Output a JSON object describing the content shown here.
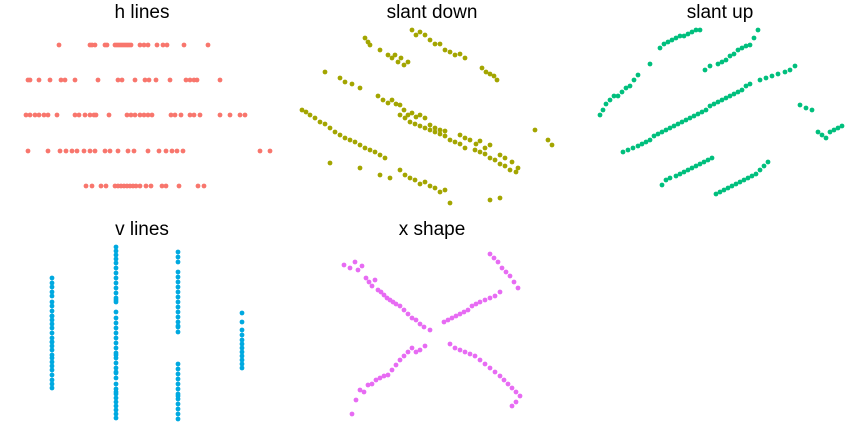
{
  "chart_data": [
    {
      "type": "scatter",
      "title": "h lines",
      "color": "#F8766D",
      "x": [
        59,
        90,
        92,
        95,
        105,
        107,
        115,
        117,
        119,
        121,
        123,
        125,
        127,
        129,
        131,
        140,
        144,
        148,
        157,
        163,
        167,
        184,
        208,
        28,
        30,
        39,
        50,
        61,
        65,
        75,
        98,
        118,
        122,
        135,
        145,
        149,
        156,
        170,
        186,
        190,
        194,
        197,
        220,
        26,
        30,
        35,
        39,
        44,
        48,
        57,
        75,
        79,
        85,
        90,
        94,
        96,
        109,
        127,
        131,
        135,
        140,
        144,
        148,
        152,
        171,
        175,
        181,
        190,
        194,
        200,
        220,
        230,
        240,
        245,
        28,
        48,
        60,
        66,
        72,
        77,
        84,
        90,
        95,
        105,
        110,
        118,
        128,
        134,
        148,
        159,
        166,
        172,
        177,
        183,
        260,
        270,
        86,
        92,
        101,
        106,
        115,
        118,
        121,
        124,
        127,
        130,
        133,
        136,
        140,
        146,
        151,
        162,
        166,
        179,
        198,
        204
      ],
      "y": [
        45,
        45,
        45,
        45,
        45,
        45,
        45,
        45,
        45,
        45,
        45,
        45,
        45,
        45,
        45,
        45,
        45,
        45,
        45,
        45,
        45,
        45,
        45,
        80,
        80,
        80,
        80,
        80,
        80,
        80,
        80,
        80,
        80,
        80,
        80,
        80,
        80,
        80,
        80,
        80,
        80,
        80,
        80,
        115,
        115,
        115,
        115,
        115,
        115,
        115,
        115,
        115,
        115,
        115,
        115,
        115,
        115,
        115,
        115,
        115,
        115,
        115,
        115,
        115,
        115,
        115,
        115,
        115,
        115,
        115,
        115,
        115,
        115,
        115,
        151,
        151,
        151,
        151,
        151,
        151,
        151,
        151,
        151,
        151,
        151,
        151,
        151,
        151,
        151,
        151,
        151,
        151,
        151,
        151,
        151,
        151,
        186,
        186,
        186,
        186,
        186,
        186,
        186,
        186,
        186,
        186,
        186,
        186,
        186,
        186,
        186,
        186,
        186,
        186,
        186,
        186
      ]
    },
    {
      "type": "scatter",
      "title": "slant down",
      "color": "#A3A500",
      "x": [
        365,
        368,
        370,
        380,
        388,
        392,
        395,
        398,
        401,
        404,
        408,
        412,
        416,
        420,
        425,
        430,
        435,
        440,
        445,
        450,
        455,
        460,
        465,
        482,
        486,
        490,
        494,
        497,
        325,
        340,
        345,
        352,
        360,
        378,
        383,
        388,
        392,
        396,
        400,
        404,
        408,
        412,
        416,
        420,
        425,
        430,
        435,
        440,
        445,
        460,
        465,
        470,
        476,
        480,
        485,
        490,
        500,
        505,
        512,
        518,
        302,
        306,
        310,
        315,
        320,
        325,
        330,
        335,
        340,
        345,
        350,
        355,
        360,
        365,
        370,
        375,
        380,
        385,
        400,
        405,
        410,
        415,
        420,
        425,
        430,
        435,
        440,
        445,
        450,
        455,
        460,
        465,
        475,
        480,
        485,
        490,
        495,
        500,
        505,
        510,
        516,
        535,
        548,
        552,
        330,
        360,
        380,
        390,
        400,
        405,
        410,
        415,
        420,
        425,
        430,
        435,
        440,
        445,
        450,
        490,
        500
      ],
      "y": [
        38,
        42,
        45,
        50,
        55,
        58,
        55,
        62,
        58,
        65,
        62,
        30,
        35,
        32,
        35,
        40,
        44,
        44,
        50,
        52,
        55,
        54,
        58,
        68,
        72,
        74,
        76,
        80,
        72,
        78,
        82,
        84,
        88,
        96,
        100,
        103,
        100,
        104,
        105,
        110,
        115,
        113,
        117,
        115,
        118,
        125,
        128,
        130,
        131,
        135,
        138,
        140,
        144,
        141,
        148,
        145,
        155,
        158,
        162,
        168,
        110,
        112,
        115,
        118,
        122,
        124,
        128,
        132,
        135,
        138,
        140,
        142,
        145,
        148,
        150,
        152,
        155,
        158,
        115,
        118,
        122,
        124,
        126,
        128,
        130,
        132,
        134,
        136,
        140,
        142,
        144,
        148,
        150,
        152,
        154,
        158,
        160,
        164,
        166,
        170,
        172,
        130,
        140,
        145,
        163,
        168,
        175,
        178,
        170,
        175,
        178,
        180,
        184,
        182,
        186,
        188,
        192,
        190,
        203,
        200,
        198
      ]
    },
    {
      "type": "scatter",
      "title": "slant up",
      "color": "#00BF7D",
      "x": [
        600,
        603,
        606,
        610,
        614,
        618,
        622,
        626,
        630,
        634,
        638,
        650,
        660,
        664,
        668,
        672,
        676,
        680,
        684,
        688,
        692,
        696,
        700,
        705,
        710,
        718,
        722,
        726,
        730,
        734,
        738,
        742,
        746,
        750,
        754,
        758,
        623,
        628,
        633,
        638,
        642,
        646,
        650,
        654,
        658,
        662,
        666,
        670,
        674,
        678,
        682,
        686,
        690,
        694,
        698,
        702,
        706,
        710,
        714,
        718,
        722,
        726,
        730,
        734,
        738,
        742,
        746,
        750,
        760,
        766,
        772,
        778,
        785,
        790,
        795,
        662,
        666,
        670,
        676,
        680,
        684,
        688,
        692,
        696,
        700,
        704,
        708,
        712,
        716,
        720,
        724,
        728,
        732,
        736,
        740,
        744,
        748,
        752,
        756,
        760,
        764,
        768,
        800,
        806,
        812,
        818,
        822,
        826,
        830,
        834,
        838,
        842
      ],
      "y": [
        115,
        110,
        104,
        100,
        96,
        96,
        92,
        88,
        86,
        80,
        75,
        64,
        48,
        44,
        42,
        40,
        38,
        36,
        36,
        34,
        32,
        30,
        30,
        70,
        66,
        64,
        62,
        60,
        56,
        54,
        50,
        48,
        46,
        45,
        38,
        30,
        152,
        150,
        148,
        146,
        144,
        142,
        140,
        136,
        134,
        132,
        130,
        128,
        126,
        124,
        122,
        120,
        118,
        116,
        114,
        112,
        110,
        106,
        104,
        102,
        100,
        98,
        96,
        94,
        92,
        90,
        86,
        84,
        80,
        78,
        76,
        74,
        72,
        70,
        66,
        185,
        180,
        178,
        176,
        174,
        172,
        170,
        168,
        166,
        164,
        162,
        160,
        158,
        194,
        192,
        190,
        188,
        186,
        184,
        182,
        180,
        178,
        176,
        174,
        170,
        166,
        162,
        105,
        108,
        110,
        132,
        135,
        138,
        132,
        130,
        128,
        126
      ]
    },
    {
      "type": "scatter",
      "title": "v lines",
      "color": "#00A9E0",
      "x": [
        52,
        52,
        52,
        52,
        52,
        52,
        52,
        52,
        52,
        52,
        52,
        52,
        52,
        52,
        52,
        52,
        52,
        52,
        52,
        52,
        52,
        52,
        52,
        52,
        52,
        52,
        52,
        52,
        116,
        116,
        116,
        116,
        116,
        116,
        116,
        116,
        116,
        116,
        116,
        116,
        116,
        116,
        116,
        116,
        116,
        116,
        116,
        116,
        116,
        116,
        116,
        116,
        116,
        116,
        116,
        116,
        116,
        116,
        116,
        116,
        116,
        116,
        116,
        116,
        116,
        116,
        116,
        116,
        178,
        178,
        178,
        178,
        178,
        178,
        178,
        178,
        178,
        178,
        178,
        178,
        178,
        178,
        178,
        178,
        178,
        178,
        178,
        178,
        178,
        178,
        178,
        178,
        178,
        178,
        178,
        178,
        178,
        178,
        242,
        242,
        242,
        242,
        242,
        242,
        242,
        242,
        242,
        242,
        242,
        242
      ],
      "y": [
        278,
        283,
        287,
        292,
        302,
        306,
        311,
        316,
        320,
        324,
        328,
        333,
        338,
        342,
        346,
        350,
        355,
        358,
        362,
        366,
        370,
        375,
        380,
        384,
        388,
        296,
        316,
        342,
        247,
        251,
        255,
        259,
        263,
        268,
        273,
        278,
        283,
        288,
        293,
        298,
        302,
        318,
        323,
        328,
        333,
        338,
        343,
        348,
        353,
        358,
        363,
        368,
        373,
        378,
        384,
        389,
        394,
        398,
        402,
        406,
        410,
        414,
        418,
        300,
        312,
        355,
        372,
        392,
        252,
        257,
        262,
        272,
        277,
        282,
        287,
        292,
        297,
        302,
        307,
        312,
        317,
        322,
        327,
        332,
        364,
        369,
        374,
        379,
        384,
        389,
        394,
        399,
        404,
        409,
        414,
        419,
        326,
        396,
        313,
        322,
        330,
        335,
        340,
        344,
        348,
        352,
        356,
        360,
        364,
        368
      ]
    },
    {
      "type": "scatter",
      "title": "x shape",
      "color": "#E76BF3",
      "x": [
        344,
        350,
        355,
        358,
        362,
        366,
        369,
        372,
        375,
        378,
        381,
        384,
        387,
        390,
        393,
        396,
        400,
        404,
        408,
        412,
        416,
        420,
        424,
        430,
        490,
        494,
        498,
        502,
        506,
        510,
        514,
        518,
        500,
        495,
        490,
        485,
        480,
        476,
        472,
        468,
        464,
        460,
        456,
        452,
        448,
        444,
        352,
        356,
        360,
        364,
        368,
        372,
        376,
        380,
        384,
        388,
        392,
        396,
        400,
        404,
        408,
        412,
        416,
        420,
        425,
        450,
        455,
        460,
        465,
        470,
        475,
        480,
        485,
        490,
        495,
        500,
        504,
        508,
        512,
        516,
        520,
        516,
        512
      ],
      "y": [
        265,
        268,
        262,
        270,
        266,
        278,
        282,
        286,
        280,
        290,
        292,
        295,
        298,
        300,
        302,
        304,
        306,
        310,
        314,
        318,
        320,
        324,
        327,
        330,
        254,
        258,
        262,
        268,
        272,
        276,
        282,
        288,
        292,
        296,
        298,
        300,
        302,
        304,
        306,
        310,
        312,
        314,
        316,
        318,
        320,
        322,
        414,
        400,
        390,
        392,
        385,
        384,
        380,
        378,
        376,
        375,
        370,
        365,
        360,
        356,
        352,
        348,
        352,
        350,
        346,
        344,
        348,
        350,
        352,
        354,
        356,
        360,
        364,
        368,
        372,
        376,
        380,
        384,
        388,
        392,
        396,
        402,
        406
      ]
    }
  ]
}
